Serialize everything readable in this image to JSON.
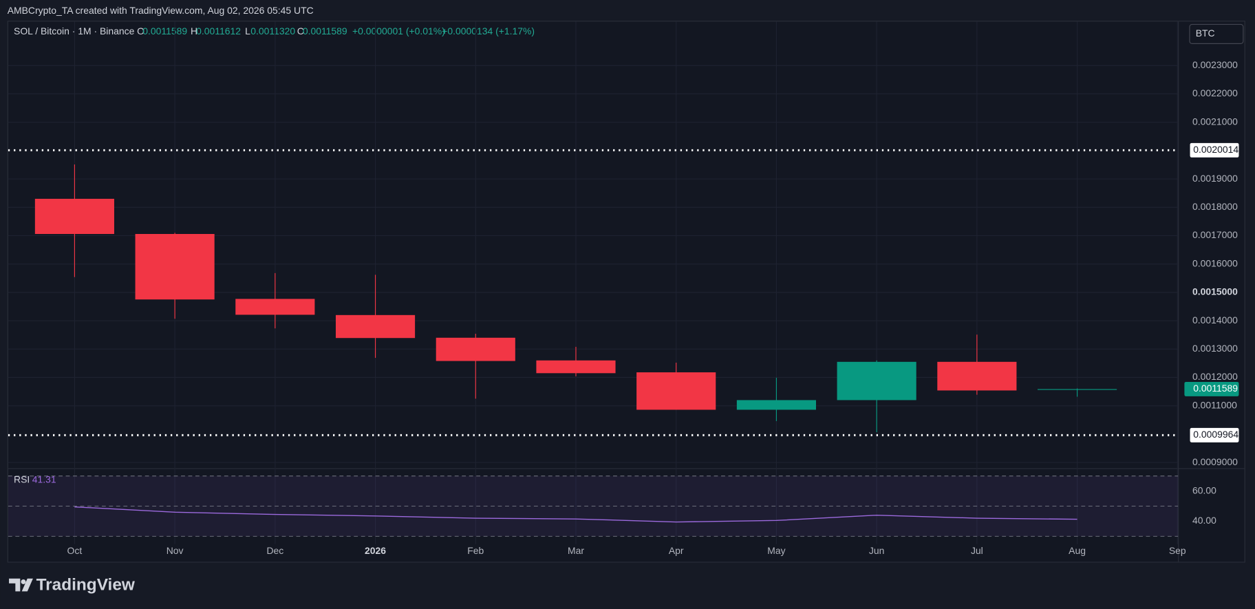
{
  "header": {
    "attribution": "AMBCrypto_TA created with TradingView.com, Aug 02, 2026 05:45 UTC",
    "symbol": "SOL / Bitcoin · 1M · Binance",
    "open_label": "O",
    "open": "0.0011589",
    "high_label": "H",
    "high": "0.0011612",
    "low_label": "L",
    "low": "0.0011320",
    "close_label": "C",
    "close": "0.0011589",
    "change": "+0.0000001 (+0.01%)",
    "change_period": "+0.0000134 (+1.17%)",
    "currency_button": "BTC",
    "brand": "TradingView"
  },
  "chart_data": [
    {
      "type": "candlestick",
      "categories": [
        "Oct",
        "Nov",
        "Dec",
        "2026",
        "Feb",
        "Mar",
        "Apr",
        "May",
        "Jun",
        "Jul",
        "Aug",
        "Sep"
      ],
      "open": [
        0.00183,
        0.001706,
        0.001477,
        0.00142,
        0.00134,
        0.00126,
        0.001218,
        0.001086,
        0.00112,
        0.001255,
        0.0011589,
        null
      ],
      "high": [
        0.001951,
        0.00171,
        0.001568,
        0.001562,
        0.001354,
        0.001308,
        0.001252,
        0.001199,
        0.00126,
        0.001351,
        0.0011612,
        null
      ],
      "low": [
        0.001554,
        0.001407,
        0.001373,
        0.001269,
        0.001125,
        0.001204,
        0.001086,
        0.001046,
        0.001007,
        0.001139,
        0.001132,
        null
      ],
      "close": [
        0.001706,
        0.001475,
        0.001421,
        0.001339,
        0.001258,
        0.001215,
        0.001086,
        0.00112,
        0.001255,
        0.001154,
        0.0011589,
        null
      ],
      "up_color": "#089981",
      "down_color": "#f23645",
      "ylim": [
        0.00088,
        0.002455
      ],
      "yticks": [
        {
          "value": 0.0009,
          "label": "0.0009000"
        },
        {
          "value": 0.0011,
          "label": "0.0011000"
        },
        {
          "value": 0.0012,
          "label": "0.0012000"
        },
        {
          "value": 0.0013,
          "label": "0.0013000"
        },
        {
          "value": 0.0014,
          "label": "0.0014000"
        },
        {
          "value": 0.0015,
          "label": "0.0015000"
        },
        {
          "value": 0.0016,
          "label": "0.0016000"
        },
        {
          "value": 0.0017,
          "label": "0.0017000"
        },
        {
          "value": 0.0018,
          "label": "0.0018000"
        },
        {
          "value": 0.0019,
          "label": "0.0019000"
        },
        {
          "value": 0.0021,
          "label": "0.0021000"
        },
        {
          "value": 0.0022,
          "label": "0.0022000"
        },
        {
          "value": 0.0023,
          "label": "0.0023000"
        }
      ],
      "horizontal_lines": [
        0.0020014,
        0.0009964
      ],
      "last_price": 0.0011589,
      "grid": true
    },
    {
      "type": "line",
      "title": "RSI",
      "series": [
        {
          "name": "RSI",
          "color": "#9c6ade",
          "values": [
            49.5,
            46,
            44.5,
            43.5,
            42,
            41.5,
            39.5,
            40.5,
            44,
            42,
            41.31,
            null
          ]
        }
      ],
      "ylim": [
        29,
        74.7
      ],
      "yticks": [
        {
          "value": 40,
          "label": "40.00"
        },
        {
          "value": 60,
          "label": "60.00"
        }
      ],
      "levels": [
        70,
        50,
        30
      ]
    }
  ]
}
